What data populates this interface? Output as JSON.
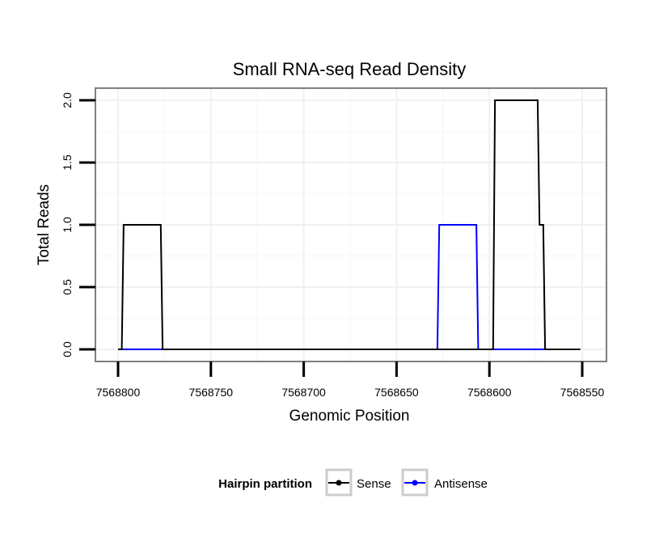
{
  "chart_data": {
    "type": "line",
    "title": "Small RNA-seq Read Density",
    "xlabel": "Genomic Position",
    "ylabel": "Total Reads",
    "x_reversed": true,
    "xlim": [
      7568800,
      7568550
    ],
    "ylim": [
      0,
      2
    ],
    "x_ticks": [
      7568800,
      7568750,
      7568700,
      7568650,
      7568600,
      7568550
    ],
    "x_tick_labels": [
      "7568800",
      "7568750",
      "7568700",
      "7568650",
      "7568600",
      "7568550"
    ],
    "y_ticks": [
      0,
      0.5,
      1,
      1.5,
      2
    ],
    "y_tick_labels": [
      "0.0",
      "0.5",
      "1.0",
      "1.5",
      "2.0"
    ],
    "grid": true,
    "legend": {
      "title": "Hairpin partition",
      "position": "bottom",
      "entries": [
        "Sense",
        "Antisense"
      ]
    },
    "series": [
      {
        "name": "Sense",
        "color": "#000000",
        "x": [
          7568800,
          7568798,
          7568797,
          7568777,
          7568776,
          7568600,
          7568598,
          7568597,
          7568574,
          7568573,
          7568571,
          7568570,
          7568551
        ],
        "y": [
          0,
          0,
          1,
          1,
          0,
          0,
          0,
          2,
          2,
          1,
          1,
          0,
          0
        ]
      },
      {
        "name": "Antisense",
        "color": "#0000ff",
        "x": [
          7568798,
          7568776,
          7568775,
          7568628,
          7568627,
          7568607,
          7568606,
          7568598,
          7568597,
          7568570
        ],
        "y": [
          0,
          0,
          0,
          0,
          1,
          1,
          0,
          0,
          0,
          0
        ]
      }
    ]
  }
}
